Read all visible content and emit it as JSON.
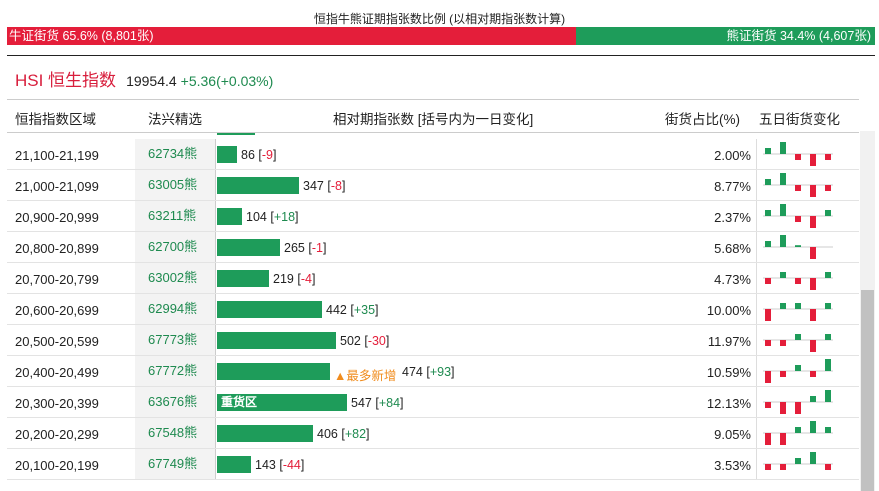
{
  "caption": "恒指牛熊证期指张数比例 (以相对期指张数计算)",
  "ratio": {
    "bull_label": "牛证街货 65.6% (8,801张)",
    "bear_label": "熊证街货 34.4% (4,607张)",
    "bull_share": 0.656,
    "bull_color": "#e41e3a",
    "bear_color": "#1e9c5a"
  },
  "index": {
    "name": "HSI 恒生指数",
    "value": "19954.4",
    "change": "+5.36(+0.03%)"
  },
  "header": {
    "col_range": "恒指指数区域",
    "col_code": "法兴精选",
    "col_contracts": "相对期指张数 [括号内为一日变化]",
    "col_pct": "街货占比(%)",
    "col_trend": "五日街货变化"
  },
  "rows": [
    {
      "range": "21,100-21,199",
      "code": "62734熊",
      "count": "86",
      "delta": "-9",
      "pct": "2.00%",
      "bar_value": 86,
      "tag": "",
      "bar_label": "",
      "trend": [
        1,
        2,
        -1,
        -2,
        -1
      ]
    },
    {
      "range": "21,000-21,099",
      "code": "63005熊",
      "count": "347",
      "delta": "-8",
      "pct": "8.77%",
      "bar_value": 347,
      "tag": "",
      "bar_label": "",
      "trend": [
        1,
        2,
        -1,
        -2,
        -1
      ]
    },
    {
      "range": "20,900-20,999",
      "code": "63211熊",
      "count": "104",
      "delta": "+18",
      "pct": "2.37%",
      "bar_value": 104,
      "tag": "",
      "bar_label": "",
      "trend": [
        1,
        2,
        -1,
        -2,
        1
      ]
    },
    {
      "range": "20,800-20,899",
      "code": "62700熊",
      "count": "265",
      "delta": "-1",
      "pct": "5.68%",
      "bar_value": 265,
      "tag": "",
      "bar_label": "",
      "trend": [
        1,
        2,
        0.3,
        -2,
        0
      ]
    },
    {
      "range": "20,700-20,799",
      "code": "63002熊",
      "count": "219",
      "delta": "-4",
      "pct": "4.73%",
      "bar_value": 219,
      "tag": "",
      "bar_label": "",
      "trend": [
        -1,
        1,
        -1,
        -2,
        1
      ]
    },
    {
      "range": "20,600-20,699",
      "code": "62994熊",
      "count": "442",
      "delta": "+35",
      "pct": "10.00%",
      "bar_value": 442,
      "tag": "",
      "bar_label": "",
      "trend": [
        -2,
        1,
        1,
        -2,
        1
      ]
    },
    {
      "range": "20,500-20,599",
      "code": "67773熊",
      "count": "502",
      "delta": "-30",
      "pct": "11.97%",
      "bar_value": 502,
      "tag": "",
      "bar_label": "",
      "trend": [
        -1,
        -1,
        1,
        -2,
        1
      ]
    },
    {
      "range": "20,400-20,499",
      "code": "67772熊",
      "count": "474",
      "delta": "+93",
      "pct": "10.59%",
      "bar_value": 474,
      "tag": "▲最多新增",
      "bar_label": "",
      "trend": [
        -2,
        -1,
        1,
        -1,
        2
      ]
    },
    {
      "range": "20,300-20,399",
      "code": "63676熊",
      "count": "547",
      "delta": "+84",
      "pct": "12.13%",
      "bar_value": 547,
      "tag": "",
      "bar_label": "重货区",
      "trend": [
        -1,
        -2,
        -2,
        1,
        2
      ]
    },
    {
      "range": "20,200-20,299",
      "code": "67548熊",
      "count": "406",
      "delta": "+82",
      "pct": "9.05%",
      "bar_value": 406,
      "tag": "",
      "bar_label": "",
      "trend": [
        -2,
        -2,
        1,
        2,
        1
      ]
    },
    {
      "range": "20,100-20,199",
      "code": "67749熊",
      "count": "143",
      "delta": "-44",
      "pct": "3.53%",
      "bar_value": 143,
      "tag": "",
      "bar_label": "",
      "trend": [
        -1,
        -1,
        1,
        2,
        -1
      ]
    }
  ]
}
